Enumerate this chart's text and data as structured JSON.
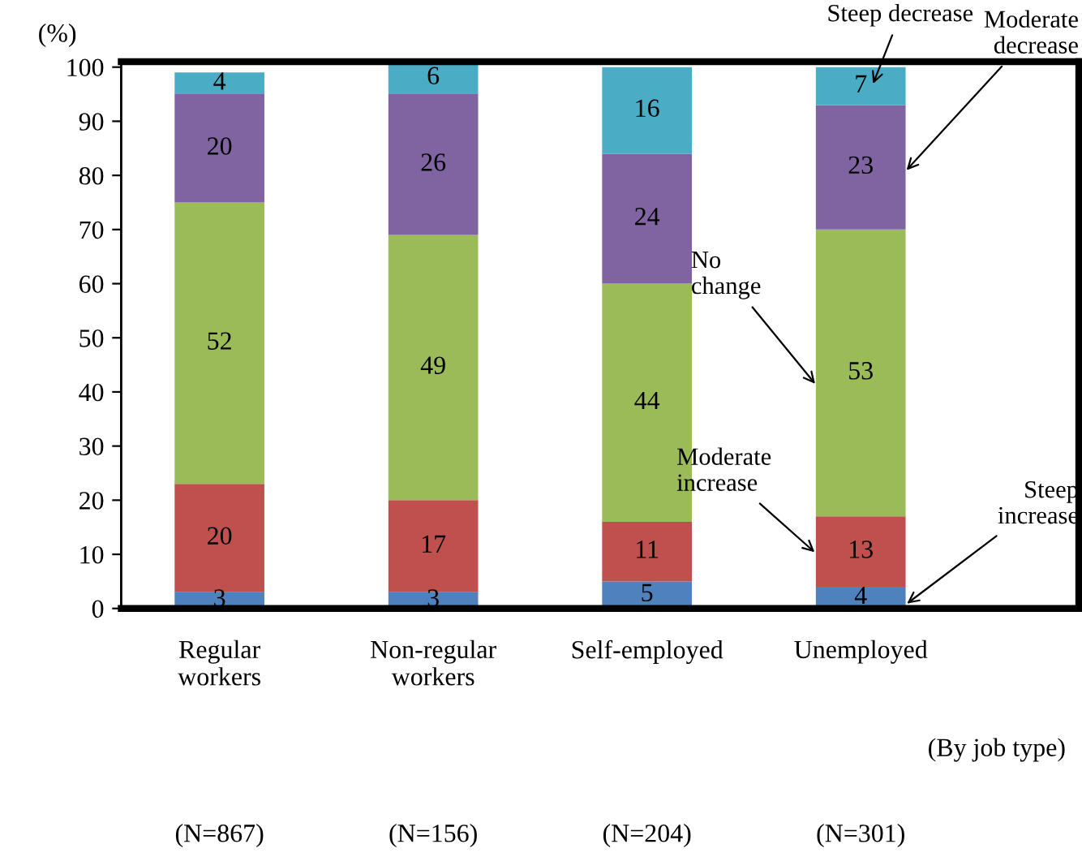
{
  "chart_data": {
    "type": "bar",
    "stacked": true,
    "ylabel": "(%)",
    "categories": [
      "Regular\nworkers",
      "Non-regular\nworkers",
      "Self-employed",
      "Unemployed"
    ],
    "series": [
      {
        "name": "Steep increase",
        "color": "#4f81bd",
        "values": [
          3,
          3,
          5,
          4
        ]
      },
      {
        "name": "Moderate increase",
        "color": "#c0504d",
        "values": [
          20,
          17,
          11,
          13
        ]
      },
      {
        "name": "No change",
        "color": "#9bbb59",
        "values": [
          52,
          49,
          44,
          53
        ]
      },
      {
        "name": "Moderate decrease",
        "color": "#8064a2",
        "values": [
          20,
          26,
          24,
          23
        ]
      },
      {
        "name": "Steep decrease",
        "color": "#4bacc6",
        "values": [
          4,
          6,
          16,
          7
        ]
      }
    ],
    "ylim": [
      0,
      101
    ],
    "yticks": [
      0,
      10,
      20,
      30,
      40,
      50,
      60,
      70,
      80,
      90,
      100
    ],
    "data_labels": true,
    "grid": false,
    "legend": false,
    "annotations": [
      "(By job type)",
      "(N=867)",
      "(N=156)",
      "(N=204)",
      "(N=301)"
    ]
  }
}
